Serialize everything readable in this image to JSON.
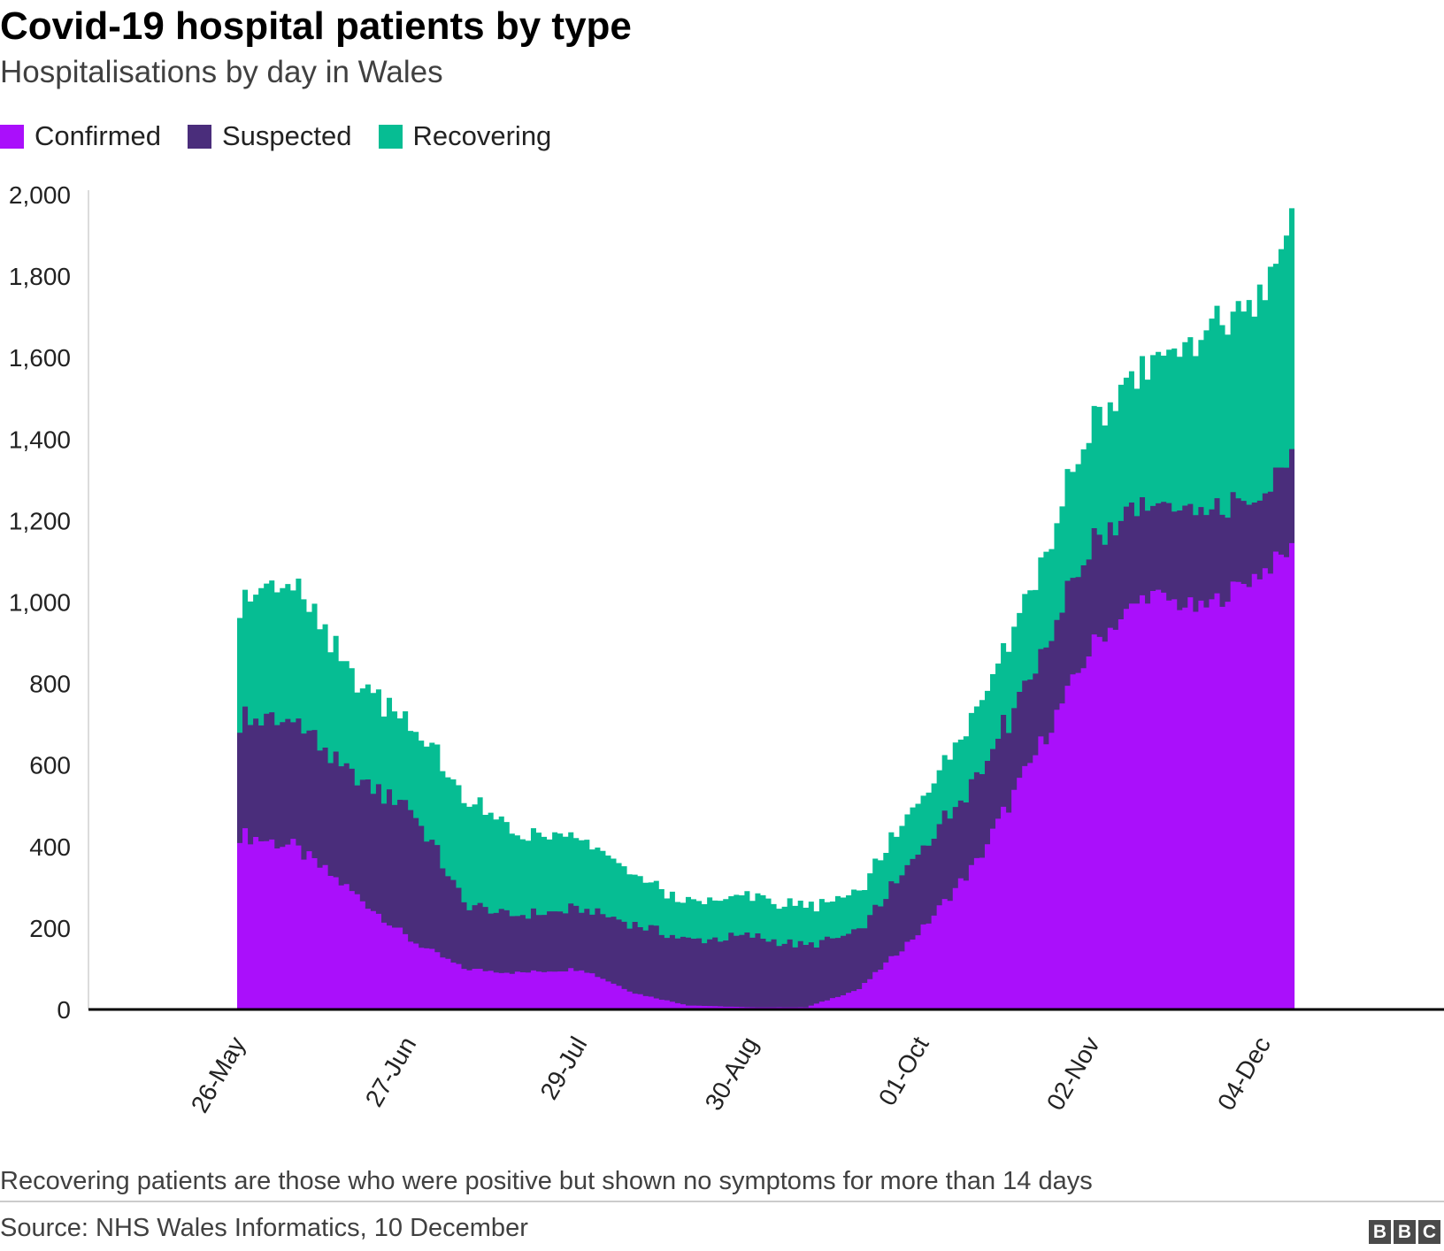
{
  "header": {
    "title": "Covid-19 hospital patients by type",
    "subtitle": "Hospitalisations by day in Wales"
  },
  "legend": [
    {
      "label": "Confirmed",
      "color": "#aa0ffb"
    },
    {
      "label": "Suspected",
      "color": "#4a2d7b"
    },
    {
      "label": "Recovering",
      "color": "#06bd93"
    }
  ],
  "footer": {
    "note": "Recovering patients are those who were positive but shown no symptoms for more than 14 days",
    "source": "Source: NHS Wales Informatics, 10 December",
    "logo": [
      "B",
      "B",
      "C"
    ]
  },
  "chart_data": {
    "type": "area",
    "stacked": true,
    "x_ticks": [
      "26-May",
      "27-Jun",
      "29-Jul",
      "30-Aug",
      "01-Oct",
      "02-Nov",
      "04-Dec"
    ],
    "x_range": [
      "2020-05-26",
      "2020-12-09"
    ],
    "ylim": [
      0,
      2000
    ],
    "y_ticks": [
      "0",
      "200",
      "400",
      "600",
      "800",
      "1,000",
      "1,200",
      "1,400",
      "1,600",
      "1,800",
      "2,000"
    ],
    "grid": false,
    "legend_position": "top-left",
    "x": [
      "2020-05-26",
      "2020-06-05",
      "2020-06-15",
      "2020-06-27",
      "2020-07-07",
      "2020-07-17",
      "2020-07-29",
      "2020-08-08",
      "2020-08-18",
      "2020-08-30",
      "2020-09-09",
      "2020-09-19",
      "2020-10-01",
      "2020-10-11",
      "2020-10-21",
      "2020-11-02",
      "2020-11-12",
      "2020-11-22",
      "2020-12-04",
      "2020-12-09"
    ],
    "series": [
      {
        "name": "Confirmed",
        "color": "#aa0ffb",
        "values": [
          430,
          400,
          300,
          170,
          100,
          90,
          100,
          40,
          10,
          5,
          5,
          50,
          200,
          360,
          600,
          900,
          1020,
          980,
          1080,
          1130
        ]
      },
      {
        "name": "Suspected",
        "color": "#4a2d7b",
        "values": [
          285,
          310,
          280,
          330,
          160,
          140,
          150,
          170,
          160,
          175,
          150,
          140,
          200,
          210,
          210,
          260,
          220,
          240,
          180,
          220
        ]
      },
      {
        "name": "Recovering",
        "color": "#06bd93",
        "values": [
          305,
          330,
          250,
          210,
          260,
          200,
          170,
          120,
          90,
          100,
          90,
          100,
          130,
          170,
          210,
          290,
          340,
          420,
          510,
          590
        ]
      }
    ]
  }
}
